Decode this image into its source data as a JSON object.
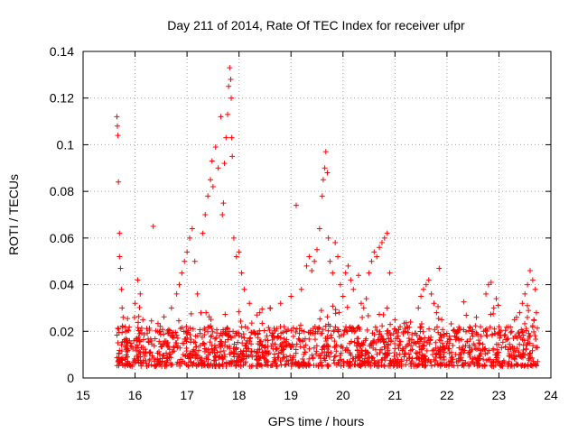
{
  "chart_data": {
    "type": "scatter",
    "title": "Day 211 of 2014, Rate Of TEC Index for receiver ufpr",
    "xlabel": "GPS time / hours",
    "ylabel": "ROTI / TECUs",
    "xlim": [
      15,
      24
    ],
    "ylim": [
      0,
      0.14
    ],
    "x_ticks": [
      "15",
      "16",
      "17",
      "18",
      "19",
      "20",
      "21",
      "22",
      "23",
      "24"
    ],
    "y_ticks": [
      "0",
      "0.02",
      "0.04",
      "0.06",
      "0.08",
      "0.1",
      "0.12",
      "0.14"
    ],
    "grid": true,
    "marker": "+",
    "color": "#ff0000",
    "baseline": {
      "x_start": 15.65,
      "x_end": 23.75,
      "y_min": 0.005,
      "y_max": 0.022
    },
    "points": [
      [
        15.65,
        0.112
      ],
      [
        15.66,
        0.108
      ],
      [
        15.67,
        0.104
      ],
      [
        15.68,
        0.084
      ],
      [
        15.7,
        0.062
      ],
      [
        15.7,
        0.052
      ],
      [
        15.72,
        0.047
      ],
      [
        15.74,
        0.038
      ],
      [
        15.75,
        0.03
      ],
      [
        15.77,
        0.026
      ],
      [
        16.0,
        0.032
      ],
      [
        16.05,
        0.042
      ],
      [
        16.1,
        0.036
      ],
      [
        16.15,
        0.025
      ],
      [
        16.35,
        0.065
      ],
      [
        16.7,
        0.03
      ],
      [
        16.8,
        0.036
      ],
      [
        16.85,
        0.04
      ],
      [
        16.9,
        0.045
      ],
      [
        16.95,
        0.05
      ],
      [
        17.0,
        0.054
      ],
      [
        17.05,
        0.06
      ],
      [
        17.1,
        0.064
      ],
      [
        17.15,
        0.05
      ],
      [
        17.2,
        0.036
      ],
      [
        17.3,
        0.062
      ],
      [
        17.35,
        0.07
      ],
      [
        17.4,
        0.078
      ],
      [
        17.45,
        0.085
      ],
      [
        17.48,
        0.093
      ],
      [
        17.5,
        0.082
      ],
      [
        17.55,
        0.099
      ],
      [
        17.6,
        0.09
      ],
      [
        17.65,
        0.112
      ],
      [
        17.68,
        0.07
      ],
      [
        17.7,
        0.075
      ],
      [
        17.72,
        0.092
      ],
      [
        17.75,
        0.103
      ],
      [
        17.78,
        0.113
      ],
      [
        17.8,
        0.125
      ],
      [
        17.82,
        0.133
      ],
      [
        17.84,
        0.128
      ],
      [
        17.85,
        0.12
      ],
      [
        17.86,
        0.103
      ],
      [
        17.87,
        0.095
      ],
      [
        17.9,
        0.06
      ],
      [
        17.95,
        0.052
      ],
      [
        18.0,
        0.054
      ],
      [
        18.05,
        0.045
      ],
      [
        18.1,
        0.038
      ],
      [
        18.2,
        0.032
      ],
      [
        18.4,
        0.028
      ],
      [
        18.6,
        0.03
      ],
      [
        18.8,
        0.032
      ],
      [
        19.0,
        0.035
      ],
      [
        19.1,
        0.074
      ],
      [
        19.2,
        0.038
      ],
      [
        19.3,
        0.048
      ],
      [
        19.35,
        0.052
      ],
      [
        19.4,
        0.046
      ],
      [
        19.45,
        0.05
      ],
      [
        19.5,
        0.055
      ],
      [
        19.55,
        0.064
      ],
      [
        19.6,
        0.078
      ],
      [
        19.62,
        0.085
      ],
      [
        19.65,
        0.09
      ],
      [
        19.67,
        0.097
      ],
      [
        19.7,
        0.088
      ],
      [
        19.72,
        0.06
      ],
      [
        19.75,
        0.05
      ],
      [
        19.8,
        0.045
      ],
      [
        19.85,
        0.058
      ],
      [
        19.9,
        0.052
      ],
      [
        19.95,
        0.04
      ],
      [
        20.0,
        0.035
      ],
      [
        20.05,
        0.045
      ],
      [
        20.1,
        0.048
      ],
      [
        20.15,
        0.042
      ],
      [
        20.2,
        0.038
      ],
      [
        20.3,
        0.044
      ],
      [
        20.35,
        0.032
      ],
      [
        20.4,
        0.03
      ],
      [
        20.45,
        0.034
      ],
      [
        20.5,
        0.045
      ],
      [
        20.55,
        0.05
      ],
      [
        20.6,
        0.054
      ],
      [
        20.65,
        0.052
      ],
      [
        20.7,
        0.056
      ],
      [
        20.75,
        0.058
      ],
      [
        20.8,
        0.06
      ],
      [
        20.85,
        0.062
      ],
      [
        20.9,
        0.045
      ],
      [
        21.0,
        0.025
      ],
      [
        21.1,
        0.022
      ],
      [
        21.2,
        0.02
      ],
      [
        21.3,
        0.024
      ],
      [
        21.45,
        0.03
      ],
      [
        21.5,
        0.035
      ],
      [
        21.55,
        0.038
      ],
      [
        21.6,
        0.04
      ],
      [
        21.65,
        0.042
      ],
      [
        21.7,
        0.036
      ],
      [
        21.75,
        0.032
      ],
      [
        21.8,
        0.028
      ],
      [
        21.85,
        0.047
      ],
      [
        21.9,
        0.025
      ],
      [
        22.2,
        0.02
      ],
      [
        22.5,
        0.018
      ],
      [
        22.75,
        0.036
      ],
      [
        22.8,
        0.04
      ],
      [
        22.85,
        0.041
      ],
      [
        22.9,
        0.03
      ],
      [
        22.95,
        0.034
      ],
      [
        23.0,
        0.022
      ],
      [
        23.3,
        0.025
      ],
      [
        23.4,
        0.028
      ],
      [
        23.45,
        0.032
      ],
      [
        23.5,
        0.036
      ],
      [
        23.55,
        0.04
      ],
      [
        23.6,
        0.046
      ],
      [
        23.65,
        0.042
      ],
      [
        23.7,
        0.038
      ],
      [
        23.72,
        0.028
      ]
    ]
  }
}
